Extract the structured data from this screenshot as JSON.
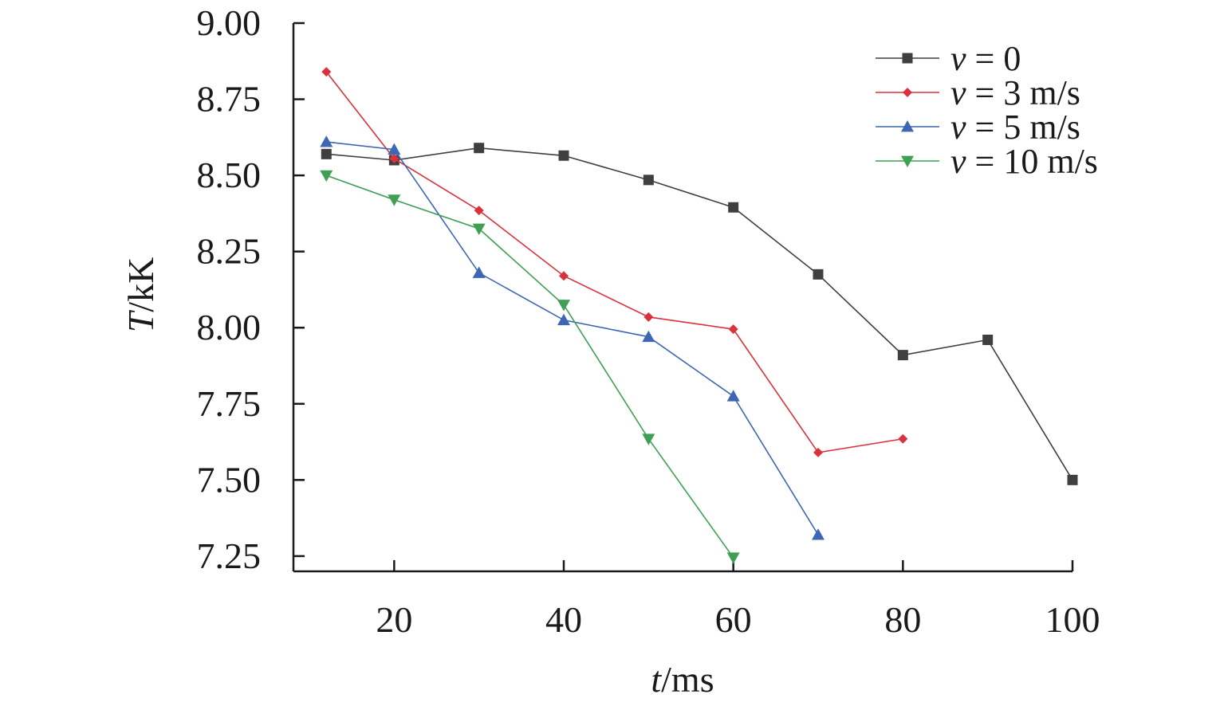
{
  "chart_data": {
    "type": "line",
    "xlabel": {
      "var": "t",
      "unit": "/ms"
    },
    "ylabel": {
      "var": "T",
      "unit": "/kK"
    },
    "xlim": [
      10,
      100
    ],
    "ylim": [
      7.2,
      9.0
    ],
    "xticks": [
      20,
      40,
      60,
      80,
      100
    ],
    "xtick_labels": [
      "20",
      "40",
      "60",
      "80",
      "100"
    ],
    "yticks": [
      7.25,
      7.5,
      7.75,
      8.0,
      8.25,
      8.5,
      8.75,
      9.0
    ],
    "ytick_labels": [
      "7.25",
      "7.50",
      "7.75",
      "8.00",
      "8.25",
      "8.50",
      "8.75",
      "9.00"
    ],
    "grid": false,
    "legend_position": "top-right",
    "series": [
      {
        "name": "v = 0",
        "name_var": "v",
        "name_rest": " = 0",
        "color": "#3f3f3f",
        "marker": "square",
        "points": [
          [
            12,
            8.57
          ],
          [
            20,
            8.55
          ],
          [
            30,
            8.59
          ],
          [
            40,
            8.565
          ],
          [
            50,
            8.485
          ],
          [
            60,
            8.395
          ],
          [
            70,
            8.175
          ],
          [
            80,
            7.91
          ],
          [
            90,
            7.96
          ],
          [
            100,
            7.5
          ]
        ]
      },
      {
        "name": "v = 3 m/s",
        "name_var": "v",
        "name_rest": " = 3 m/s",
        "color": "#d9323c",
        "marker": "diamond",
        "points": [
          [
            12,
            8.84
          ],
          [
            20,
            8.555
          ],
          [
            30,
            8.385
          ],
          [
            40,
            8.17
          ],
          [
            50,
            8.035
          ],
          [
            60,
            7.995
          ],
          [
            70,
            7.59
          ],
          [
            80,
            7.635
          ]
        ]
      },
      {
        "name": "v = 5 m/s",
        "name_var": "v",
        "name_rest": " = 5 m/s",
        "color": "#3d66b4",
        "marker": "triangle-up",
        "points": [
          [
            12,
            8.61
          ],
          [
            20,
            8.585
          ],
          [
            30,
            8.18
          ],
          [
            40,
            8.025
          ],
          [
            50,
            7.97
          ],
          [
            60,
            7.775
          ],
          [
            70,
            7.32
          ]
        ]
      },
      {
        "name": "v = 10 m/s",
        "name_var": "v",
        "name_rest": " = 10 m/s",
        "color": "#3fa055",
        "marker": "triangle-down",
        "points": [
          [
            12,
            8.5
          ],
          [
            20,
            8.42
          ],
          [
            30,
            8.325
          ],
          [
            40,
            8.075
          ],
          [
            50,
            7.635
          ],
          [
            60,
            7.245
          ]
        ]
      }
    ]
  }
}
